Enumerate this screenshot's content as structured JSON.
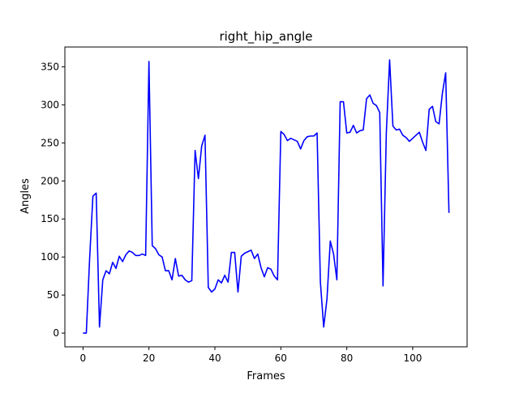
{
  "chart_data": {
    "type": "line",
    "title": "right_hip_angle",
    "xlabel": "Frames",
    "ylabel": "Angles",
    "xlim": [
      -5.5,
      116.5
    ],
    "ylim": [
      -18,
      376
    ],
    "xticks": [
      0,
      20,
      40,
      60,
      80,
      100
    ],
    "yticks": [
      0,
      50,
      100,
      150,
      200,
      250,
      300,
      350
    ],
    "grid": false,
    "legend": "none",
    "line_color": "#0000ff",
    "series": [
      {
        "x": [
          0,
          1,
          2,
          3,
          4,
          5,
          6,
          7,
          8,
          9,
          10,
          11,
          12,
          13,
          14,
          15,
          16,
          17,
          18,
          19,
          20,
          21,
          22,
          23,
          24,
          25,
          26,
          27,
          28,
          29,
          30,
          31,
          32,
          33,
          34,
          35,
          36,
          37,
          38,
          39,
          40,
          41,
          42,
          43,
          44,
          45,
          46,
          47,
          48,
          49,
          50,
          51,
          52,
          53,
          54,
          55,
          56,
          57,
          58,
          59,
          60,
          61,
          62,
          63,
          64,
          65,
          66,
          67,
          68,
          69,
          70,
          71,
          72,
          73,
          74,
          75,
          76,
          77,
          78,
          79,
          80,
          81,
          82,
          83,
          84,
          85,
          86,
          87,
          88,
          89,
          90,
          91,
          92,
          93,
          94,
          95,
          96,
          97,
          98,
          99,
          100,
          101,
          102,
          103,
          104,
          105,
          106,
          107,
          108,
          109,
          110,
          111
        ],
        "y": [
          0,
          0,
          97,
          180,
          184,
          8,
          70,
          82,
          78,
          93,
          85,
          101,
          94,
          103,
          108,
          106,
          102,
          102,
          104,
          102,
          357,
          115,
          111,
          103,
          100,
          82,
          82,
          70,
          98,
          75,
          76,
          70,
          67,
          69,
          240,
          203,
          246,
          260,
          60,
          54,
          58,
          70,
          66,
          76,
          67,
          106,
          106,
          54,
          101,
          105,
          107,
          109,
          98,
          104,
          86,
          74,
          86,
          84,
          75,
          70,
          265,
          261,
          253,
          256,
          254,
          252,
          242,
          253,
          258,
          259,
          259,
          263,
          67,
          8,
          45,
          121,
          104,
          70,
          304,
          304,
          263,
          264,
          273,
          263,
          266,
          267,
          308,
          313,
          302,
          299,
          290,
          62,
          263,
          359,
          272,
          267,
          268,
          260,
          257,
          252,
          256,
          260,
          264,
          251,
          240,
          294,
          298,
          278,
          275,
          315,
          342,
          158
        ]
      }
    ]
  }
}
